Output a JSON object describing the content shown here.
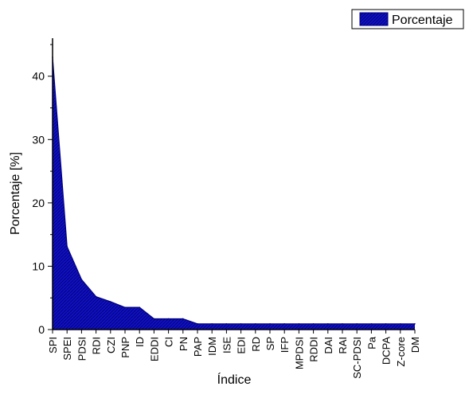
{
  "chart_data": {
    "type": "area",
    "title": "",
    "xlabel": "Índice",
    "ylabel": "Porcentaje [%]",
    "ylim": [
      0,
      46
    ],
    "yticks": [
      0,
      10,
      20,
      30,
      40
    ],
    "grid": false,
    "legend_position": "top-right",
    "categories": [
      "SPI",
      "SPEI",
      "PDSI",
      "RDI",
      "CZI",
      "PNP",
      "ID",
      "EDDI",
      "CI",
      "PN",
      "PAP",
      "IDM",
      "ISE",
      "EDI",
      "RD",
      "SP",
      "IFP",
      "MPDSI",
      "RDDI",
      "DAI",
      "RAI",
      "SC-PDSI",
      "Pa",
      "DCPA",
      "Z-core",
      "DM"
    ],
    "series": [
      {
        "name": "Porcentaje",
        "values": [
          43,
          13.1,
          7.9,
          5.2,
          4.4,
          3.5,
          3.5,
          1.7,
          1.7,
          1.7,
          0.9,
          0.9,
          0.9,
          0.9,
          0.9,
          0.9,
          0.9,
          0.9,
          0.9,
          0.9,
          0.9,
          0.9,
          0.9,
          0.9,
          0.9,
          0.9
        ]
      }
    ],
    "colors": {
      "fill": "#1010c8",
      "stroke": "#000080",
      "hatch": "#000060"
    }
  }
}
